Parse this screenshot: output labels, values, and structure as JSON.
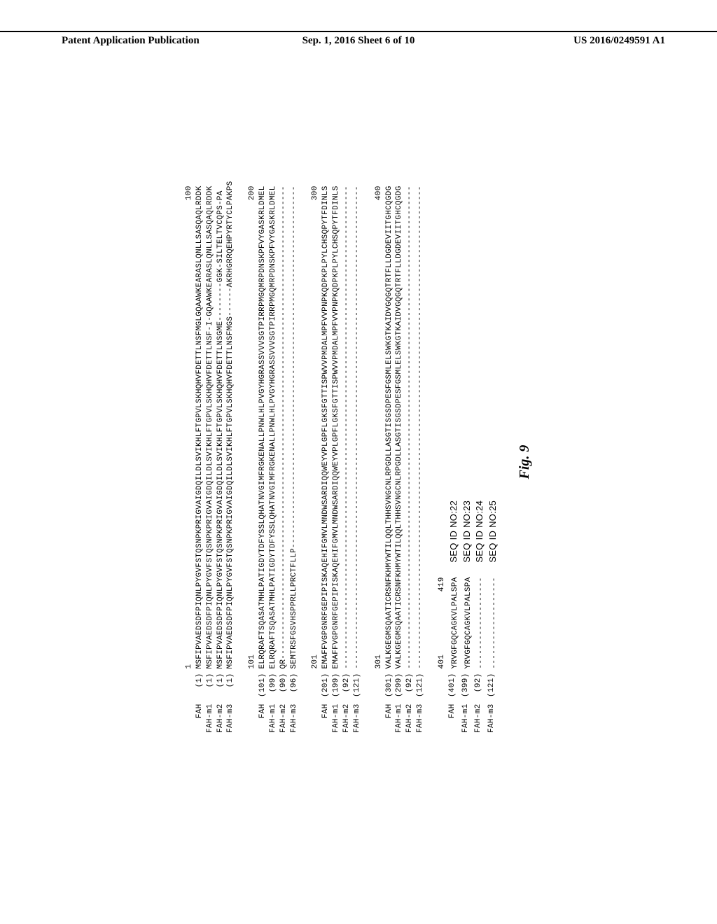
{
  "header": {
    "left": "Patent Application Publication",
    "center": "Sep. 1, 2016  Sheet 6 of 10",
    "right": "US 2016/0249591 A1"
  },
  "figure_label": "Fig. 9",
  "alignment": {
    "blocks": [
      {
        "ruler_start": "1",
        "ruler_end": "100",
        "rows": [
          {
            "label": "FAH",
            "pos": "(1)",
            "seq": "MSFIPVAEDSDFPIQNLPYGVFSTQSNPKPRIGVAIGDQILDLSVIKHLFTGPVLSKHQHVFDETTLNSFMGLGQAAWKEARASLQNLLSASQAQLRDDK"
          },
          {
            "label": "FAH-m1",
            "pos": "(1)",
            "seq": "MSFIPVAEDSDFPIQNLPYGVFSTQSNPKPRIGVAIGDQILDLSVIKHLFTGPVLSKHQHVFDETTLNSF-I-GQAAWKEARASLQNLLSASQAQLRDDK"
          },
          {
            "label": "FAH-m2",
            "pos": "(1)",
            "seq": "MSFIPVAEDSDFPIQNLPYGVFSTQSNPKPRIGVAIGDQILDLSVIKHLFTGPVLSKHQHVFDETTLNSGME--------GGK-SILTELTVCQPS-PA"
          },
          {
            "label": "FAH-m3",
            "pos": "(1)",
            "seq": "MSFIPVAEDSDFPIQNLPYGVFSTQSNPKPRIGVAIGDQILDLSVIKHLFTGPVLSKHQHVFDETTLNSFMGS------AKRHGRRQEHPYRTYCLPAKPS"
          }
        ]
      },
      {
        "ruler_start": "101",
        "ruler_end": "200",
        "rows": [
          {
            "label": "FAH",
            "pos": "(101)",
            "seq": "ELRQRAFTSQASATMHLPATIGDYTDFYSSLQHATNVGIMFRGKENALLPNWLHLPVGYHGRASSVVVSGTPIRRPMGQMRPDNSKPFVYGASKRLDMEL"
          },
          {
            "label": "FAH-m1",
            "pos": "(99)",
            "seq": "ELRQRAFTSQASATMHLPATIGDYTDFYSSLQHATNVGIMFRGKENALLPNWLHLPVGYHGRASSVVVSGTPIRRPMGQMRPDNSKPFVYGASKRLDMEL"
          },
          {
            "label": "FAH-m2",
            "pos": "(90)",
            "seq": "QR--------------------------------------------------------------------------------------------------"
          },
          {
            "label": "FAH-m3",
            "pos": "(96)",
            "seq": "SEMTRSFGSVHSPPRLLPRCTFLLP---------------------------------------------------------------------------"
          }
        ]
      },
      {
        "ruler_start": "201",
        "ruler_end": "300",
        "rows": [
          {
            "label": "FAH",
            "pos": "(201)",
            "seq": "EMAFFVGPGNRFGEPIPISKAQEHIFGMVLMNDWSARDIQQWEYVPLGPFLGKSFGTTISPWVVPMDALMPFVVPNPKQDPKPLPYLCHSQPYTFDINLS"
          },
          {
            "label": "FAH-m1",
            "pos": "(199)",
            "seq": "EMAFFVGPGNRFGEPIPISKAQEHIFGMVLMNDWSARDIQQWEYVPLGPFLGKSFGTTISPWVVPMDALMPFVVPNPKQDPKPLPYLCHSQPYTFDINLS"
          },
          {
            "label": "FAH-m2",
            "pos": "(92)",
            "seq": "----------------------------------------------------------------------------------------------------"
          },
          {
            "label": "FAH-m3",
            "pos": "(121)",
            "seq": "----------------------------------------------------------------------------------------------------"
          }
        ]
      },
      {
        "ruler_start": "301",
        "ruler_end": "400",
        "rows": [
          {
            "label": "FAH",
            "pos": "(301)",
            "seq": "VALKGEGMSQAATICRSNFKHMYWTILQQLTHHSVNGCNLRPGDLLASGTISGSDPESFGSMLELSWKGTKAIDVGQGQTRTFLLDGDEVIITGHCQGDG"
          },
          {
            "label": "FAH-m1",
            "pos": "(299)",
            "seq": "VALKGEGMSQAATICRSNFKHMYWTILQQLTHHSVNGCNLRPGDLLASGTISGSDPESFGSMLELSWKGTKAIDVGQGQTRTFLLDGDEVIITGHCQGDG"
          },
          {
            "label": "FAH-m2",
            "pos": "(92)",
            "seq": "----------------------------------------------------------------------------------------------------"
          },
          {
            "label": "FAH-m3",
            "pos": "(121)",
            "seq": "----------------------------------------------------------------------------------------------------"
          }
        ]
      },
      {
        "ruler_start": "401",
        "ruler_end": "419",
        "rows": [
          {
            "label": "FAH",
            "pos": "(401)",
            "seq": "YRVGFGQCAGKVLPALSPA",
            "seqid": "SEQ ID NO:22"
          },
          {
            "label": "FAH-m1",
            "pos": "(399)",
            "seq": "YRVGFGQCAGKVLPALSPA",
            "seqid": "SEQ ID NO:23"
          },
          {
            "label": "FAH-m2",
            "pos": "(92)",
            "seq": "-------------------",
            "seqid": "SEQ ID NO:24"
          },
          {
            "label": "FAH-m3",
            "pos": "(121)",
            "seq": "-------------------",
            "seqid": "SEQ ID NO:25"
          }
        ]
      }
    ]
  }
}
